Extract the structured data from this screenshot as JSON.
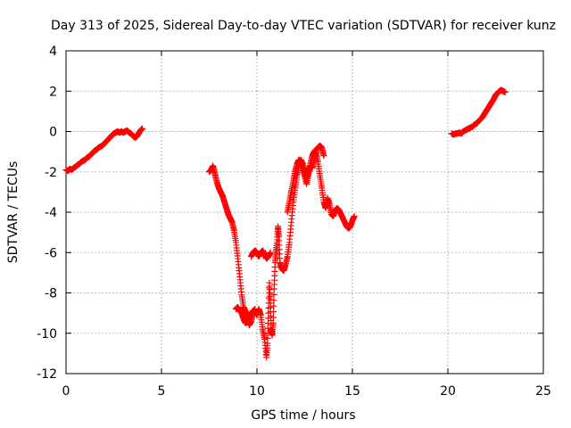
{
  "chart_data": {
    "type": "scatter",
    "title": "Day 313 of 2025, Sidereal Day-to-day VTEC variation (SDTVAR) for receiver kunz",
    "xlabel": "GPS time / hours",
    "ylabel": "SDTVAR / TECUs",
    "xlim": [
      0,
      25
    ],
    "ylim": [
      -12,
      4
    ],
    "xticks": [
      0,
      5,
      10,
      15,
      20,
      25
    ],
    "yticks": [
      -12,
      -10,
      -8,
      -6,
      -4,
      -2,
      0,
      2,
      4
    ],
    "grid": true,
    "marker": "+",
    "colors": {
      "series": "#ff0000",
      "grid": "#a0a0a0",
      "axis": "#000000"
    },
    "series": [
      {
        "name": "SDTVAR",
        "segments": [
          [
            [
              0.0,
              -1.9
            ],
            [
              0.1,
              -1.95
            ],
            [
              0.2,
              -1.85
            ],
            [
              0.3,
              -1.9
            ],
            [
              0.4,
              -1.8
            ],
            [
              0.5,
              -1.75
            ],
            [
              0.6,
              -1.65
            ],
            [
              0.7,
              -1.6
            ],
            [
              0.8,
              -1.5
            ],
            [
              0.9,
              -1.45
            ],
            [
              1.0,
              -1.4
            ],
            [
              1.1,
              -1.3
            ],
            [
              1.2,
              -1.25
            ],
            [
              1.3,
              -1.15
            ],
            [
              1.4,
              -1.05
            ],
            [
              1.5,
              -0.95
            ],
            [
              1.6,
              -0.9
            ],
            [
              1.7,
              -0.8
            ],
            [
              1.8,
              -0.75
            ],
            [
              1.9,
              -0.7
            ],
            [
              2.0,
              -0.6
            ],
            [
              2.1,
              -0.5
            ],
            [
              2.2,
              -0.4
            ],
            [
              2.3,
              -0.3
            ],
            [
              2.4,
              -0.2
            ],
            [
              2.5,
              -0.1
            ],
            [
              2.6,
              -0.05
            ],
            [
              2.7,
              0.0
            ],
            [
              2.8,
              -0.05
            ],
            [
              2.9,
              0.0
            ],
            [
              3.0,
              -0.05
            ],
            [
              3.1,
              0.0
            ],
            [
              3.2,
              0.05
            ],
            [
              3.3,
              -0.05
            ],
            [
              3.4,
              -0.1
            ],
            [
              3.5,
              -0.2
            ],
            [
              3.6,
              -0.3
            ],
            [
              3.7,
              -0.25
            ],
            [
              3.8,
              -0.1
            ],
            [
              3.9,
              0.05
            ],
            [
              4.0,
              0.15
            ]
          ],
          [
            [
              7.5,
              -2.0
            ],
            [
              7.6,
              -1.9
            ],
            [
              7.7,
              -1.7
            ],
            [
              7.8,
              -2.1
            ],
            [
              7.9,
              -2.5
            ],
            [
              8.0,
              -2.8
            ],
            [
              8.1,
              -3.0
            ],
            [
              8.2,
              -3.2
            ],
            [
              8.3,
              -3.5
            ],
            [
              8.4,
              -3.8
            ],
            [
              8.5,
              -4.1
            ],
            [
              8.6,
              -4.3
            ],
            [
              8.7,
              -4.5
            ],
            [
              8.8,
              -4.9
            ],
            [
              8.9,
              -5.5
            ],
            [
              9.0,
              -6.3
            ],
            [
              9.1,
              -7.2
            ],
            [
              9.2,
              -8.1
            ],
            [
              9.3,
              -8.7
            ],
            [
              9.4,
              -8.9
            ],
            [
              9.5,
              -9.2
            ],
            [
              9.6,
              -9.6
            ],
            [
              9.7,
              -9.4
            ],
            [
              9.8,
              -9.0
            ],
            [
              9.9,
              -8.9
            ],
            [
              10.0,
              -9.1
            ],
            [
              10.1,
              -8.8
            ],
            [
              10.2,
              -9.1
            ],
            [
              10.3,
              -9.8
            ],
            [
              10.4,
              -10.3
            ],
            [
              10.5,
              -11.2
            ],
            [
              10.55,
              -10.5
            ],
            [
              10.6,
              -9.0
            ],
            [
              10.65,
              -7.5
            ],
            [
              10.7,
              -8.5
            ],
            [
              10.75,
              -9.8
            ],
            [
              10.8,
              -10.1
            ],
            [
              10.85,
              -9.5
            ],
            [
              10.9,
              -7.8
            ],
            [
              10.95,
              -6.5
            ],
            [
              11.0,
              -6.0
            ],
            [
              11.05,
              -5.5
            ],
            [
              11.1,
              -4.7
            ],
            [
              11.15,
              -5.2
            ],
            [
              11.2,
              -6.5
            ],
            [
              11.3,
              -6.8
            ],
            [
              11.4,
              -6.9
            ],
            [
              11.5,
              -6.6
            ],
            [
              11.6,
              -6.2
            ],
            [
              11.7,
              -5.5
            ],
            [
              11.8,
              -4.5
            ],
            [
              11.9,
              -3.5
            ],
            [
              12.0,
              -2.8
            ],
            [
              12.1,
              -2.2
            ],
            [
              12.2,
              -1.7
            ],
            [
              12.3,
              -1.4
            ],
            [
              12.4,
              -1.6
            ],
            [
              12.5,
              -2.0
            ],
            [
              12.6,
              -2.3
            ],
            [
              12.7,
              -2.0
            ],
            [
              12.8,
              -1.7
            ],
            [
              12.9,
              -1.8
            ],
            [
              13.0,
              -1.4
            ],
            [
              13.1,
              -1.0
            ],
            [
              13.2,
              -1.5
            ],
            [
              13.3,
              -2.2
            ],
            [
              13.4,
              -2.8
            ],
            [
              13.5,
              -3.5
            ],
            [
              13.6,
              -3.8
            ],
            [
              13.7,
              -3.3
            ],
            [
              13.8,
              -3.6
            ],
            [
              13.9,
              -4.1
            ],
            [
              14.0,
              -4.2
            ],
            [
              14.1,
              -3.9
            ],
            [
              14.2,
              -3.8
            ],
            [
              14.3,
              -3.9
            ],
            [
              14.4,
              -4.1
            ],
            [
              14.5,
              -4.3
            ],
            [
              14.6,
              -4.5
            ],
            [
              14.7,
              -4.7
            ],
            [
              14.8,
              -4.8
            ],
            [
              14.9,
              -4.7
            ],
            [
              15.0,
              -4.4
            ],
            [
              15.1,
              -4.2
            ]
          ],
          [
            [
              8.9,
              -8.8
            ],
            [
              9.0,
              -8.7
            ],
            [
              9.1,
              -8.9
            ],
            [
              9.2,
              -9.0
            ],
            [
              9.3,
              -9.3
            ],
            [
              9.4,
              -9.5
            ],
            [
              9.5,
              -9.4
            ],
            [
              9.6,
              -9.1
            ],
            [
              9.7,
              -9.0
            ],
            [
              9.8,
              -8.9
            ],
            [
              9.9,
              -8.8
            ]
          ],
          [
            [
              9.7,
              -6.2
            ],
            [
              9.8,
              -6.0
            ],
            [
              9.9,
              -5.9
            ],
            [
              10.0,
              -6.0
            ],
            [
              10.1,
              -6.2
            ],
            [
              10.2,
              -6.0
            ],
            [
              10.3,
              -5.9
            ],
            [
              10.4,
              -6.1
            ],
            [
              10.5,
              -6.3
            ],
            [
              10.6,
              -6.2
            ],
            [
              10.7,
              -6.0
            ]
          ],
          [
            [
              11.6,
              -4.0
            ],
            [
              11.7,
              -3.5
            ],
            [
              11.8,
              -3.0
            ],
            [
              11.9,
              -2.5
            ],
            [
              12.0,
              -2.0
            ],
            [
              12.1,
              -1.6
            ],
            [
              12.2,
              -1.4
            ],
            [
              12.3,
              -1.5
            ],
            [
              12.4,
              -1.8
            ],
            [
              12.5,
              -2.2
            ],
            [
              12.6,
              -2.6
            ],
            [
              12.7,
              -2.1
            ],
            [
              12.8,
              -1.6
            ],
            [
              12.9,
              -1.2
            ],
            [
              13.0,
              -1.0
            ],
            [
              13.1,
              -0.9
            ],
            [
              13.2,
              -0.8
            ],
            [
              13.3,
              -0.7
            ],
            [
              13.4,
              -0.8
            ],
            [
              13.5,
              -1.2
            ]
          ],
          [
            [
              20.2,
              -0.1
            ],
            [
              20.3,
              -0.15
            ],
            [
              20.4,
              -0.1
            ],
            [
              20.5,
              -0.1
            ],
            [
              20.6,
              -0.05
            ],
            [
              20.7,
              -0.1
            ],
            [
              20.8,
              0.0
            ],
            [
              20.9,
              0.05
            ],
            [
              21.0,
              0.1
            ],
            [
              21.1,
              0.15
            ],
            [
              21.2,
              0.2
            ],
            [
              21.3,
              0.25
            ],
            [
              21.4,
              0.35
            ],
            [
              21.5,
              0.4
            ],
            [
              21.6,
              0.5
            ],
            [
              21.7,
              0.6
            ],
            [
              21.8,
              0.7
            ],
            [
              21.9,
              0.85
            ],
            [
              22.0,
              1.0
            ],
            [
              22.1,
              1.15
            ],
            [
              22.2,
              1.3
            ],
            [
              22.3,
              1.45
            ],
            [
              22.4,
              1.6
            ],
            [
              22.5,
              1.8
            ],
            [
              22.6,
              1.9
            ],
            [
              22.7,
              2.0
            ],
            [
              22.8,
              2.05
            ],
            [
              22.9,
              2.0
            ],
            [
              23.0,
              1.95
            ]
          ]
        ]
      }
    ]
  }
}
